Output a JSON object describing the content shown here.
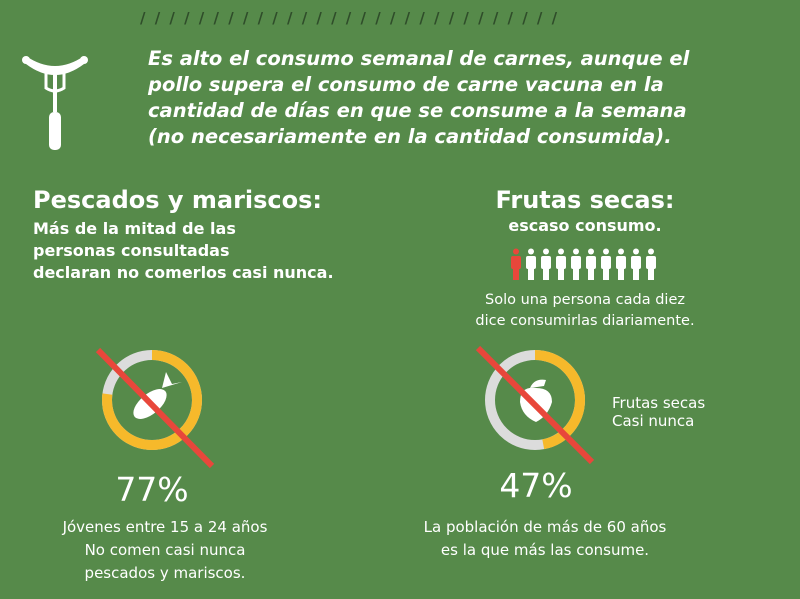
{
  "header": {
    "slashes": "/ / / / / / / / / / / / / / / / / / / / / / / / / / / / /"
  },
  "intro": {
    "lines": [
      "Es alto el consumo semanal de carnes, aunque el",
      "pollo supera el consumo de carne vacuna en la",
      "cantidad de días en que se consume a la semana",
      "(no necesariamente en la cantidad consumida)."
    ],
    "icon": "sausage-fork-icon"
  },
  "fish": {
    "title": "Pescados y mariscos:",
    "subtitle": [
      "Más de la mitad de las",
      "personas consultadas",
      "declaran no comerlos casi nunca."
    ],
    "percent_label": "77%",
    "percent": 77,
    "caption": [
      "Jóvenes entre 15 a 24 años",
      "No comen casi nunca",
      "pescados y mariscos."
    ],
    "icon": "fish-icon"
  },
  "nuts": {
    "title": "Frutas secas:",
    "subtitle": "escaso consumo.",
    "people_total": 10,
    "people_highlighted": 1,
    "note": [
      "Solo una persona cada diez",
      "dice consumirlas diariamente."
    ],
    "percent_label": "47%",
    "percent": 47,
    "legend": [
      "Frutas secas",
      "Casi nunca"
    ],
    "caption": [
      "La población de más de 60 años",
      "es la que más las consume."
    ],
    "icon": "acorn-icon"
  },
  "colors": {
    "background": "#568a4a",
    "accent": "#f6b92b",
    "ring": "#dcdcdc",
    "strike": "#e8473b",
    "highlight": "#e8473b"
  }
}
